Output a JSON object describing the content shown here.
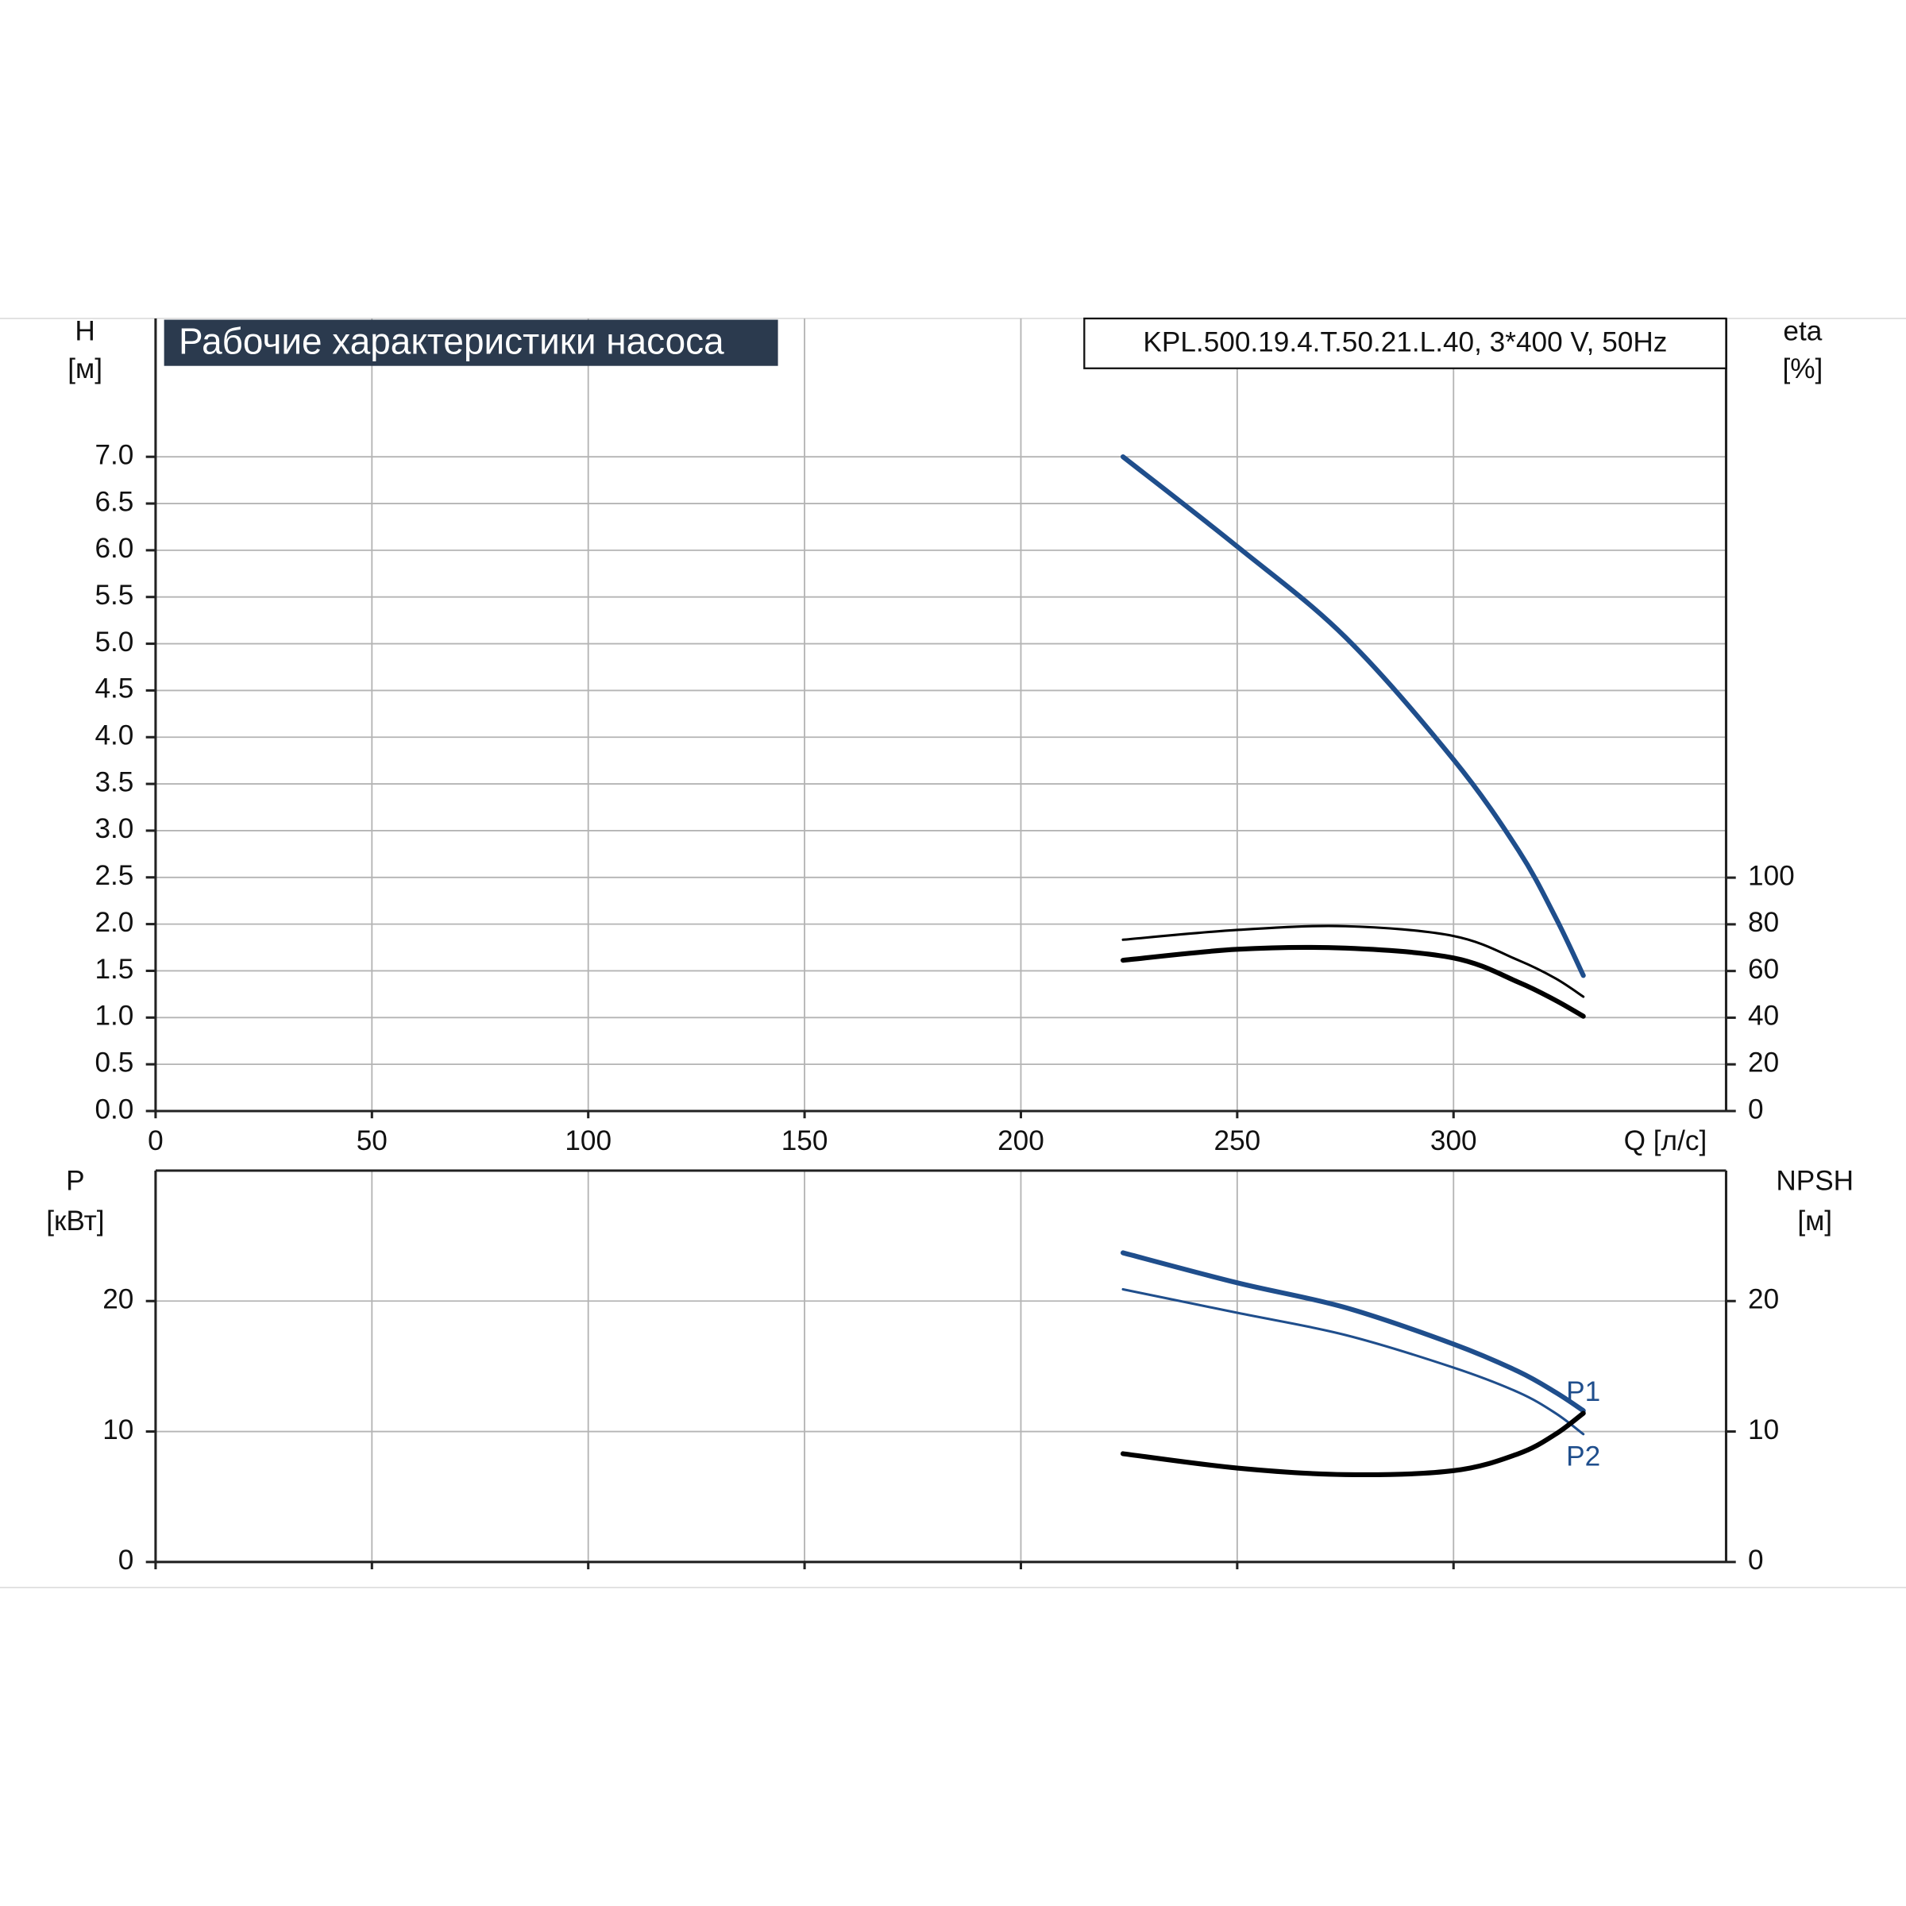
{
  "chart_data": [
    {
      "type": "line",
      "title": "Рабочие характеристики насоса",
      "subtitle": "KPL.500.19.4.T.50.21.L.40, 3*400 V, 50Hz",
      "x_label": "Q [л/с]",
      "y_label": [
        "H",
        "[м]"
      ],
      "y2_label": [
        "eta",
        "[%]"
      ],
      "x": [
        223.6,
        250,
        275,
        300,
        315,
        323.6,
        330
      ],
      "xlim": [
        0,
        363
      ],
      "xticks": [
        0,
        50,
        100,
        150,
        200,
        250,
        300
      ],
      "ylim": [
        0,
        8.48
      ],
      "yticks": [
        {
          "value": 0,
          "label": "0.0"
        },
        0.5,
        {
          "value": 1,
          "label": "1.0"
        },
        1.5,
        {
          "value": 2,
          "label": "2.0"
        },
        2.5,
        {
          "value": 3,
          "label": "3.0"
        },
        3.5,
        {
          "value": 4,
          "label": "4.0"
        },
        4.5,
        {
          "value": 5,
          "label": "5.0"
        },
        5.5,
        {
          "value": 6,
          "label": "6.0"
        },
        6.5,
        {
          "value": 7,
          "label": "7.0"
        }
      ],
      "y2lim": [
        0,
        339.6
      ],
      "y2ticks": [
        0,
        20,
        40,
        60,
        80,
        100
      ],
      "grid": true,
      "series": [
        {
          "color": "#1f4e8c",
          "width": 4,
          "values": [
            7.0,
            6.04,
            5.07,
            3.76,
            2.79,
            2.07,
            1.45
          ]
        },
        {
          "color": "#000000",
          "width": 4,
          "axis": "y2",
          "values": [
            64.6,
            69.3,
            69.8,
            65.6,
            55.2,
            47.4,
            40.6
          ]
        },
        {
          "color": "#000000",
          "width": 2,
          "axis": "y2",
          "values": [
            73.4,
            77.6,
            79.2,
            75.0,
            64.6,
            56.8,
            49.0
          ]
        }
      ]
    },
    {
      "type": "line",
      "y_label": [
        "P",
        "[кВт]"
      ],
      "y2_label": [
        "NPSH",
        "[м]"
      ],
      "x": [
        223.6,
        250,
        275,
        300,
        315,
        323.6,
        330
      ],
      "xlim": [
        0,
        363
      ],
      "xticks": [
        0,
        50,
        100,
        150,
        200,
        250,
        300
      ],
      "ylim": [
        0,
        30
      ],
      "yticks": [
        0,
        10,
        20
      ],
      "y2lim": [
        0,
        30
      ],
      "y2ticks": [
        0,
        10,
        20
      ],
      "grid": true,
      "series": [
        {
          "name": "P1",
          "color": "#1f4e8c",
          "width": 4,
          "values": [
            23.7,
            21.4,
            19.5,
            16.7,
            14.6,
            13.0,
            11.6
          ]
        },
        {
          "name": "P2",
          "color": "#1f4e8c",
          "width": 2,
          "values": [
            20.9,
            19.1,
            17.4,
            14.9,
            13.0,
            11.4,
            9.8
          ]
        },
        {
          "color": "#000000",
          "width": 4,
          "axis": "y2",
          "values": [
            8.3,
            7.2,
            6.7,
            7.0,
            8.3,
            9.8,
            11.4
          ]
        }
      ]
    }
  ]
}
